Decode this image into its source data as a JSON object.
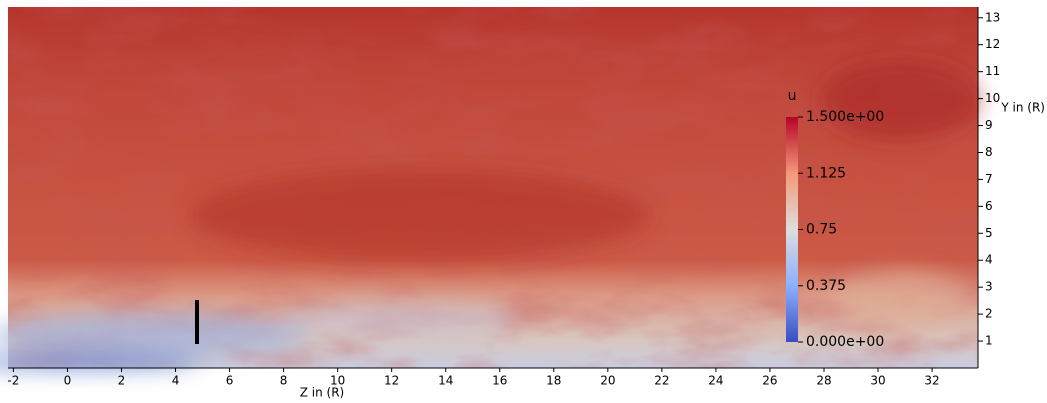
{
  "chart_data": {
    "type": "heatmap",
    "x_label": "Z in (R)",
    "y_label": "Y in (R)",
    "xlim": [
      -2.2,
      33.7
    ],
    "ylim": [
      0,
      13.4
    ],
    "xticks": [
      -2,
      0,
      2,
      4,
      6,
      8,
      10,
      12,
      14,
      16,
      18,
      20,
      22,
      24,
      26,
      28,
      30,
      32
    ],
    "yticks": [
      1,
      2,
      3,
      4,
      5,
      6,
      7,
      8,
      9,
      10,
      11,
      12,
      13
    ],
    "colorbar": {
      "title": "u",
      "range": [
        0,
        1.5
      ],
      "ticks": [
        {
          "value": 0,
          "label": "0.000e+00"
        },
        0.375,
        0.75,
        1.125,
        {
          "value": 1.5,
          "label": "1.500e+00"
        }
      ],
      "colors": [
        "#3b4cc0",
        "#8db0fe",
        "#dddddd",
        "#f4987a",
        "#b40426"
      ]
    }
  }
}
